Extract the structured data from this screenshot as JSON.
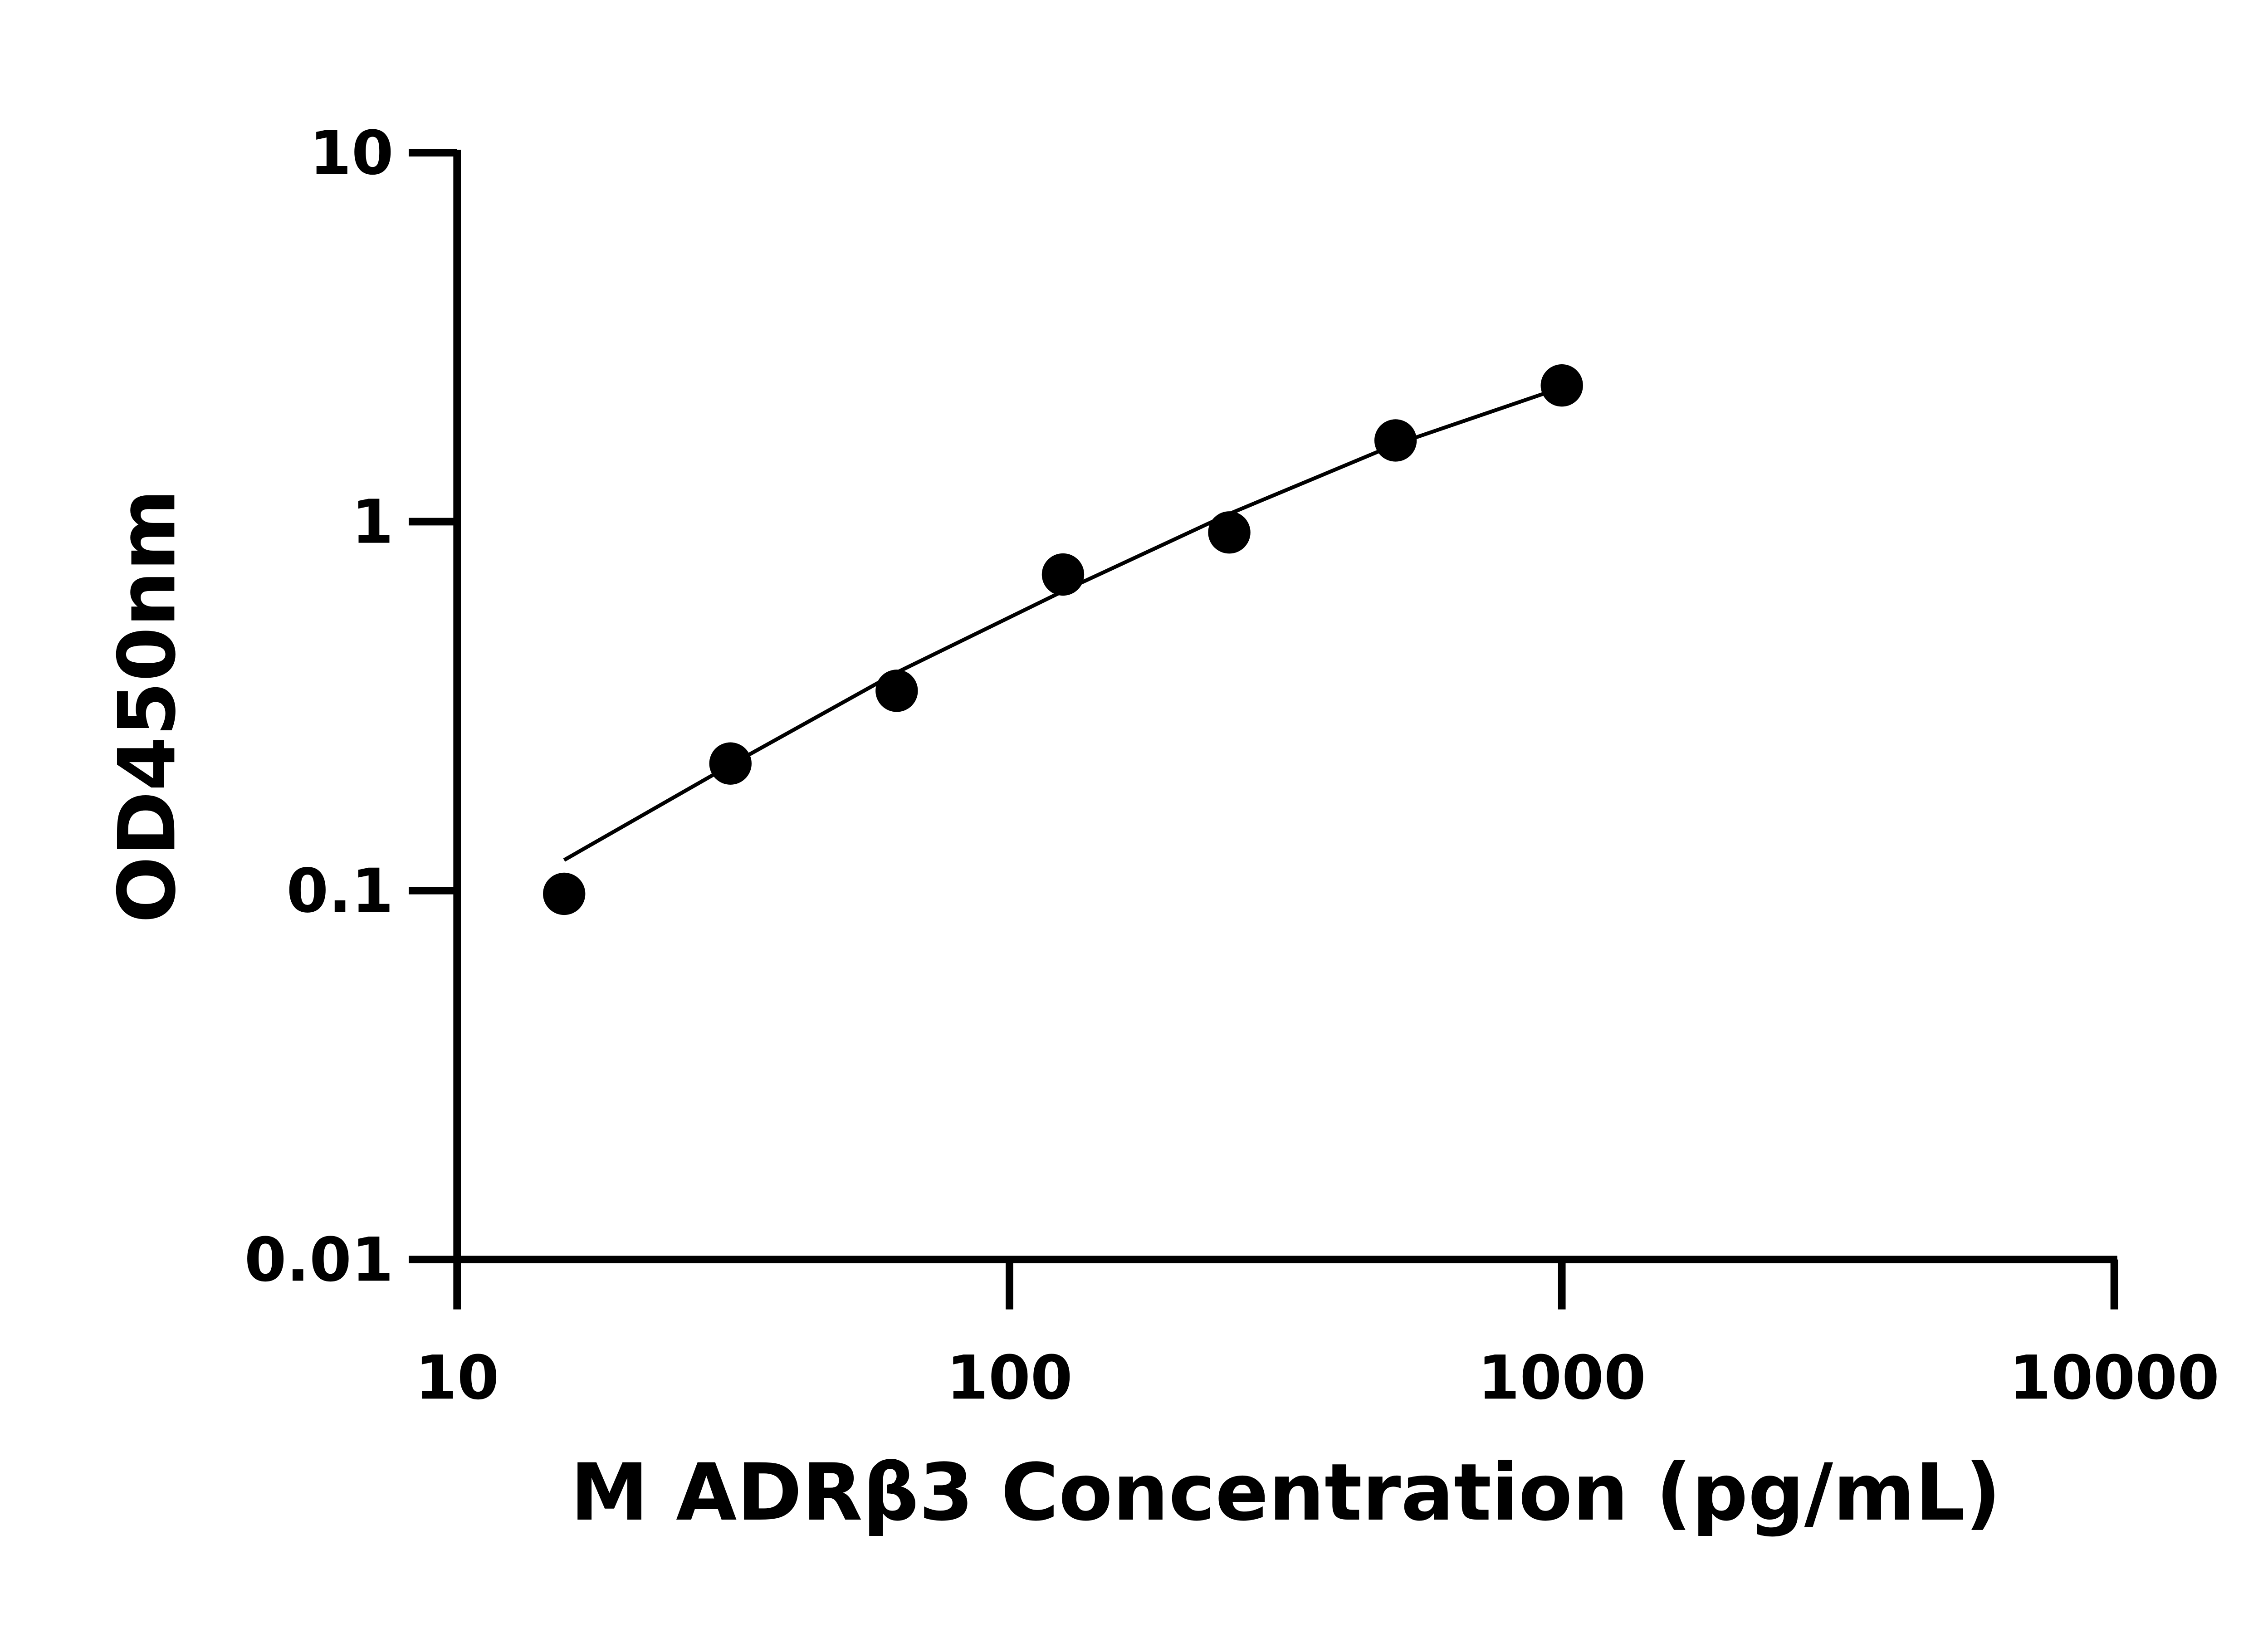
{
  "chart_data": {
    "type": "scatter",
    "x_label": "M ADRβ3 Concentration (pg/mL)",
    "y_label": "OD450nm",
    "xscale": "log",
    "yscale": "log",
    "xlim": [
      10,
      10000
    ],
    "ylim": [
      0.01,
      10
    ],
    "xticks": [
      10,
      100,
      1000,
      10000
    ],
    "yticks": [
      0.01,
      0.1,
      1,
      10
    ],
    "color": "#000000",
    "x": [
      15.625,
      31.25,
      62.5,
      125,
      250,
      500,
      1000
    ],
    "values": [
      0.098,
      0.221,
      0.348,
      0.719,
      0.935,
      1.66,
      2.34
    ],
    "fit": {
      "x": [
        15.625,
        31.25,
        62.5,
        125,
        250,
        500,
        1000
      ],
      "values": [
        0.121,
        0.219,
        0.39,
        0.648,
        1.05,
        1.62,
        2.31
      ]
    }
  }
}
